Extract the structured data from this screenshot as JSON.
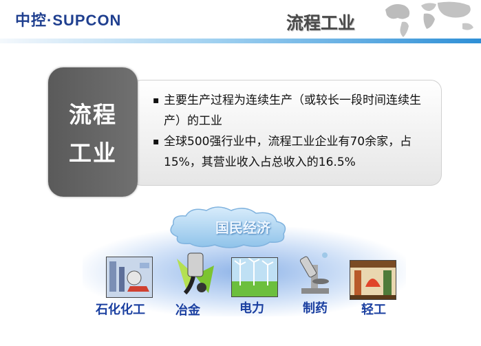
{
  "header": {
    "logo": "中控·SUPCON",
    "title": "流程工业"
  },
  "panel": {
    "title_line1": "流程",
    "title_line2": "工业",
    "bullets": [
      "主要生产过程为连续生产（或较长一段时间连续生产）的工业",
      "全球500强行业中，流程工业企业有70余家，占15%，其营业收入占总收入的16.5%"
    ]
  },
  "cloud_label": "国民经济",
  "industries": [
    {
      "label": "石化化工",
      "icon": "petrochemical-icon"
    },
    {
      "label": "冶金",
      "icon": "metallurgy-icon"
    },
    {
      "label": "电力",
      "icon": "power-icon"
    },
    {
      "label": "制药",
      "icon": "pharma-icon"
    },
    {
      "label": "轻工",
      "icon": "light-industry-icon"
    }
  ],
  "colors": {
    "accent_blue": "#2e8fd6",
    "label_blue": "#1a3fa0",
    "panel_gray": "#666666"
  }
}
